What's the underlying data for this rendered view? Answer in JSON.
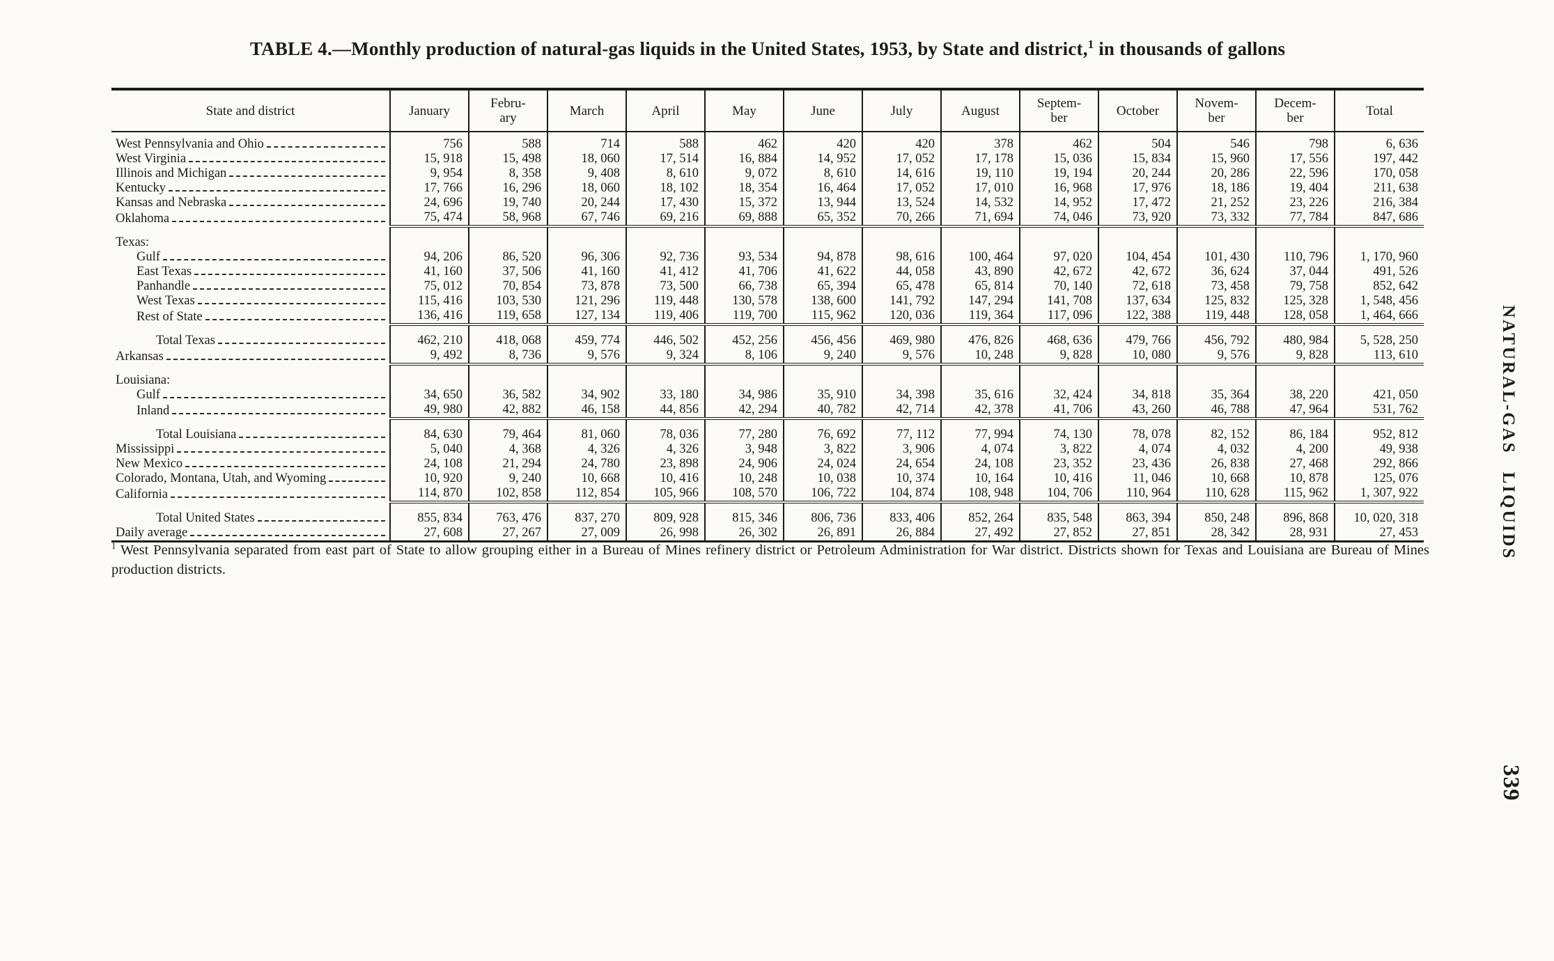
{
  "page": {
    "title_main": "TABLE 4.—Monthly production of natural-gas liquids in the United States, 1953, by State and district,",
    "title_sup": "1",
    "title_tail": " in thousands of gallons",
    "footnote_sup": "1",
    "footnote_text": " West Pennsylvania separated from east part of State to allow grouping either in a Bureau of Mines refinery district or Petroleum Administration for War district.  Districts shown for Texas and Louisiana are Bureau of Mines production districts.",
    "side_label": "NATURAL-GAS LIQUIDS",
    "page_number": "339"
  },
  "table": {
    "columns": [
      "State and district",
      "January",
      "Febru-\nary",
      "March",
      "April",
      "May",
      "June",
      "July",
      "August",
      "Septem-\nber",
      "October",
      "Novem-\nber",
      "Decem-\nber",
      "Total"
    ],
    "rows": [
      {
        "label": "West Pennsylvania and Ohio",
        "indent": 0,
        "values": [
          "756",
          "588",
          "714",
          "588",
          "462",
          "420",
          "420",
          "378",
          "462",
          "504",
          "546",
          "798",
          "6, 636"
        ]
      },
      {
        "label": "West Virginia",
        "indent": 0,
        "values": [
          "15, 918",
          "15, 498",
          "18, 060",
          "17, 514",
          "16, 884",
          "14, 952",
          "17, 052",
          "17, 178",
          "15, 036",
          "15, 834",
          "15, 960",
          "17, 556",
          "197, 442"
        ]
      },
      {
        "label": "Illinois and Michigan",
        "indent": 0,
        "values": [
          "9, 954",
          "8, 358",
          "9, 408",
          "8, 610",
          "9, 072",
          "8, 610",
          "14, 616",
          "19, 110",
          "19, 194",
          "20, 244",
          "20, 286",
          "22, 596",
          "170, 058"
        ]
      },
      {
        "label": "Kentucky",
        "indent": 0,
        "values": [
          "17, 766",
          "16, 296",
          "18, 060",
          "18, 102",
          "18, 354",
          "16, 464",
          "17, 052",
          "17, 010",
          "16, 968",
          "17, 976",
          "18, 186",
          "19, 404",
          "211, 638"
        ]
      },
      {
        "label": "Kansas and Nebraska",
        "indent": 0,
        "values": [
          "24, 696",
          "19, 740",
          "20, 244",
          "17, 430",
          "15, 372",
          "13, 944",
          "13, 524",
          "14, 532",
          "14, 952",
          "17, 472",
          "21, 252",
          "23, 226",
          "216, 384"
        ]
      },
      {
        "label": "Oklahoma",
        "indent": 0,
        "section_end": true,
        "values": [
          "75, 474",
          "58, 968",
          "67, 746",
          "69, 216",
          "69, 888",
          "65, 352",
          "70, 266",
          "71, 694",
          "74, 046",
          "73, 920",
          "73, 332",
          "77, 784",
          "847, 686"
        ]
      },
      {
        "label": "Texas:",
        "indent": 0,
        "leader": false,
        "values": []
      },
      {
        "label": "Gulf",
        "indent": 1,
        "values": [
          "94, 206",
          "86, 520",
          "96, 306",
          "92, 736",
          "93, 534",
          "94, 878",
          "98, 616",
          "100, 464",
          "97, 020",
          "104, 454",
          "101, 430",
          "110, 796",
          "1, 170, 960"
        ]
      },
      {
        "label": "East Texas",
        "indent": 1,
        "values": [
          "41, 160",
          "37, 506",
          "41, 160",
          "41, 412",
          "41, 706",
          "41, 622",
          "44, 058",
          "43, 890",
          "42, 672",
          "42, 672",
          "36, 624",
          "37, 044",
          "491, 526"
        ]
      },
      {
        "label": "Panhandle",
        "indent": 1,
        "values": [
          "75, 012",
          "70, 854",
          "73, 878",
          "73, 500",
          "66, 738",
          "65, 394",
          "65, 478",
          "65, 814",
          "70, 140",
          "72, 618",
          "73, 458",
          "79, 758",
          "852, 642"
        ]
      },
      {
        "label": "West Texas",
        "indent": 1,
        "values": [
          "115, 416",
          "103, 530",
          "121, 296",
          "119, 448",
          "130, 578",
          "138, 600",
          "141, 792",
          "147, 294",
          "141, 708",
          "137, 634",
          "125, 832",
          "125, 328",
          "1, 548, 456"
        ]
      },
      {
        "label": "Rest of State",
        "indent": 1,
        "section_end": true,
        "values": [
          "136, 416",
          "119, 658",
          "127, 134",
          "119, 406",
          "119, 700",
          "115, 962",
          "120, 036",
          "119, 364",
          "117, 096",
          "122, 388",
          "119, 448",
          "128, 058",
          "1, 464, 666"
        ]
      },
      {
        "label": "Total Texas",
        "indent": 2,
        "values": [
          "462, 210",
          "418, 068",
          "459, 774",
          "446, 502",
          "452, 256",
          "456, 456",
          "469, 980",
          "476, 826",
          "468, 636",
          "479, 766",
          "456, 792",
          "480, 984",
          "5, 528, 250"
        ]
      },
      {
        "label": "Arkansas",
        "indent": 0,
        "section_end": true,
        "values": [
          "9, 492",
          "8, 736",
          "9, 576",
          "9, 324",
          "8, 106",
          "9, 240",
          "9, 576",
          "10, 248",
          "9, 828",
          "10, 080",
          "9, 576",
          "9, 828",
          "113, 610"
        ]
      },
      {
        "label": "Louisiana:",
        "indent": 0,
        "leader": false,
        "values": []
      },
      {
        "label": "Gulf",
        "indent": 1,
        "values": [
          "34, 650",
          "36, 582",
          "34, 902",
          "33, 180",
          "34, 986",
          "35, 910",
          "34, 398",
          "35, 616",
          "32, 424",
          "34, 818",
          "35, 364",
          "38, 220",
          "421, 050"
        ]
      },
      {
        "label": "Inland",
        "indent": 1,
        "section_end": true,
        "values": [
          "49, 980",
          "42, 882",
          "46, 158",
          "44, 856",
          "42, 294",
          "40, 782",
          "42, 714",
          "42, 378",
          "41, 706",
          "43, 260",
          "46, 788",
          "47, 964",
          "531, 762"
        ]
      },
      {
        "label": "Total Louisiana",
        "indent": 2,
        "values": [
          "84, 630",
          "79, 464",
          "81, 060",
          "78, 036",
          "77, 280",
          "76, 692",
          "77, 112",
          "77, 994",
          "74, 130",
          "78, 078",
          "82, 152",
          "86, 184",
          "952, 812"
        ]
      },
      {
        "label": "Mississippi",
        "indent": 0,
        "values": [
          "5, 040",
          "4, 368",
          "4, 326",
          "4, 326",
          "3, 948",
          "3, 822",
          "3, 906",
          "4, 074",
          "3, 822",
          "4, 074",
          "4, 032",
          "4, 200",
          "49, 938"
        ]
      },
      {
        "label": "New Mexico",
        "indent": 0,
        "values": [
          "24, 108",
          "21, 294",
          "24, 780",
          "23, 898",
          "24, 906",
          "24, 024",
          "24, 654",
          "24, 108",
          "23, 352",
          "23, 436",
          "26, 838",
          "27, 468",
          "292, 866"
        ]
      },
      {
        "label": "Colorado, Montana, Utah, and Wyoming",
        "indent": 0,
        "values": [
          "10, 920",
          "9, 240",
          "10, 668",
          "10, 416",
          "10, 248",
          "10, 038",
          "10, 374",
          "10, 164",
          "10, 416",
          "11, 046",
          "10, 668",
          "10, 878",
          "125, 076"
        ]
      },
      {
        "label": "California",
        "indent": 0,
        "section_end": true,
        "values": [
          "114, 870",
          "102, 858",
          "112, 854",
          "105, 966",
          "108, 570",
          "106, 722",
          "104, 874",
          "108, 948",
          "104, 706",
          "110, 964",
          "110, 628",
          "115, 962",
          "1, 307, 922"
        ]
      },
      {
        "label": "Total United States",
        "indent": 2,
        "values": [
          "855, 834",
          "763, 476",
          "837, 270",
          "809, 928",
          "815, 346",
          "806, 736",
          "833, 406",
          "852, 264",
          "835, 548",
          "863, 394",
          "850, 248",
          "896, 868",
          "10, 020, 318"
        ]
      },
      {
        "label": "Daily average",
        "indent": 0,
        "values": [
          "27, 608",
          "27, 267",
          "27, 009",
          "26, 998",
          "26, 302",
          "26, 891",
          "26, 884",
          "27, 492",
          "27, 852",
          "27, 851",
          "28, 342",
          "28, 931",
          "27, 453"
        ]
      }
    ]
  }
}
